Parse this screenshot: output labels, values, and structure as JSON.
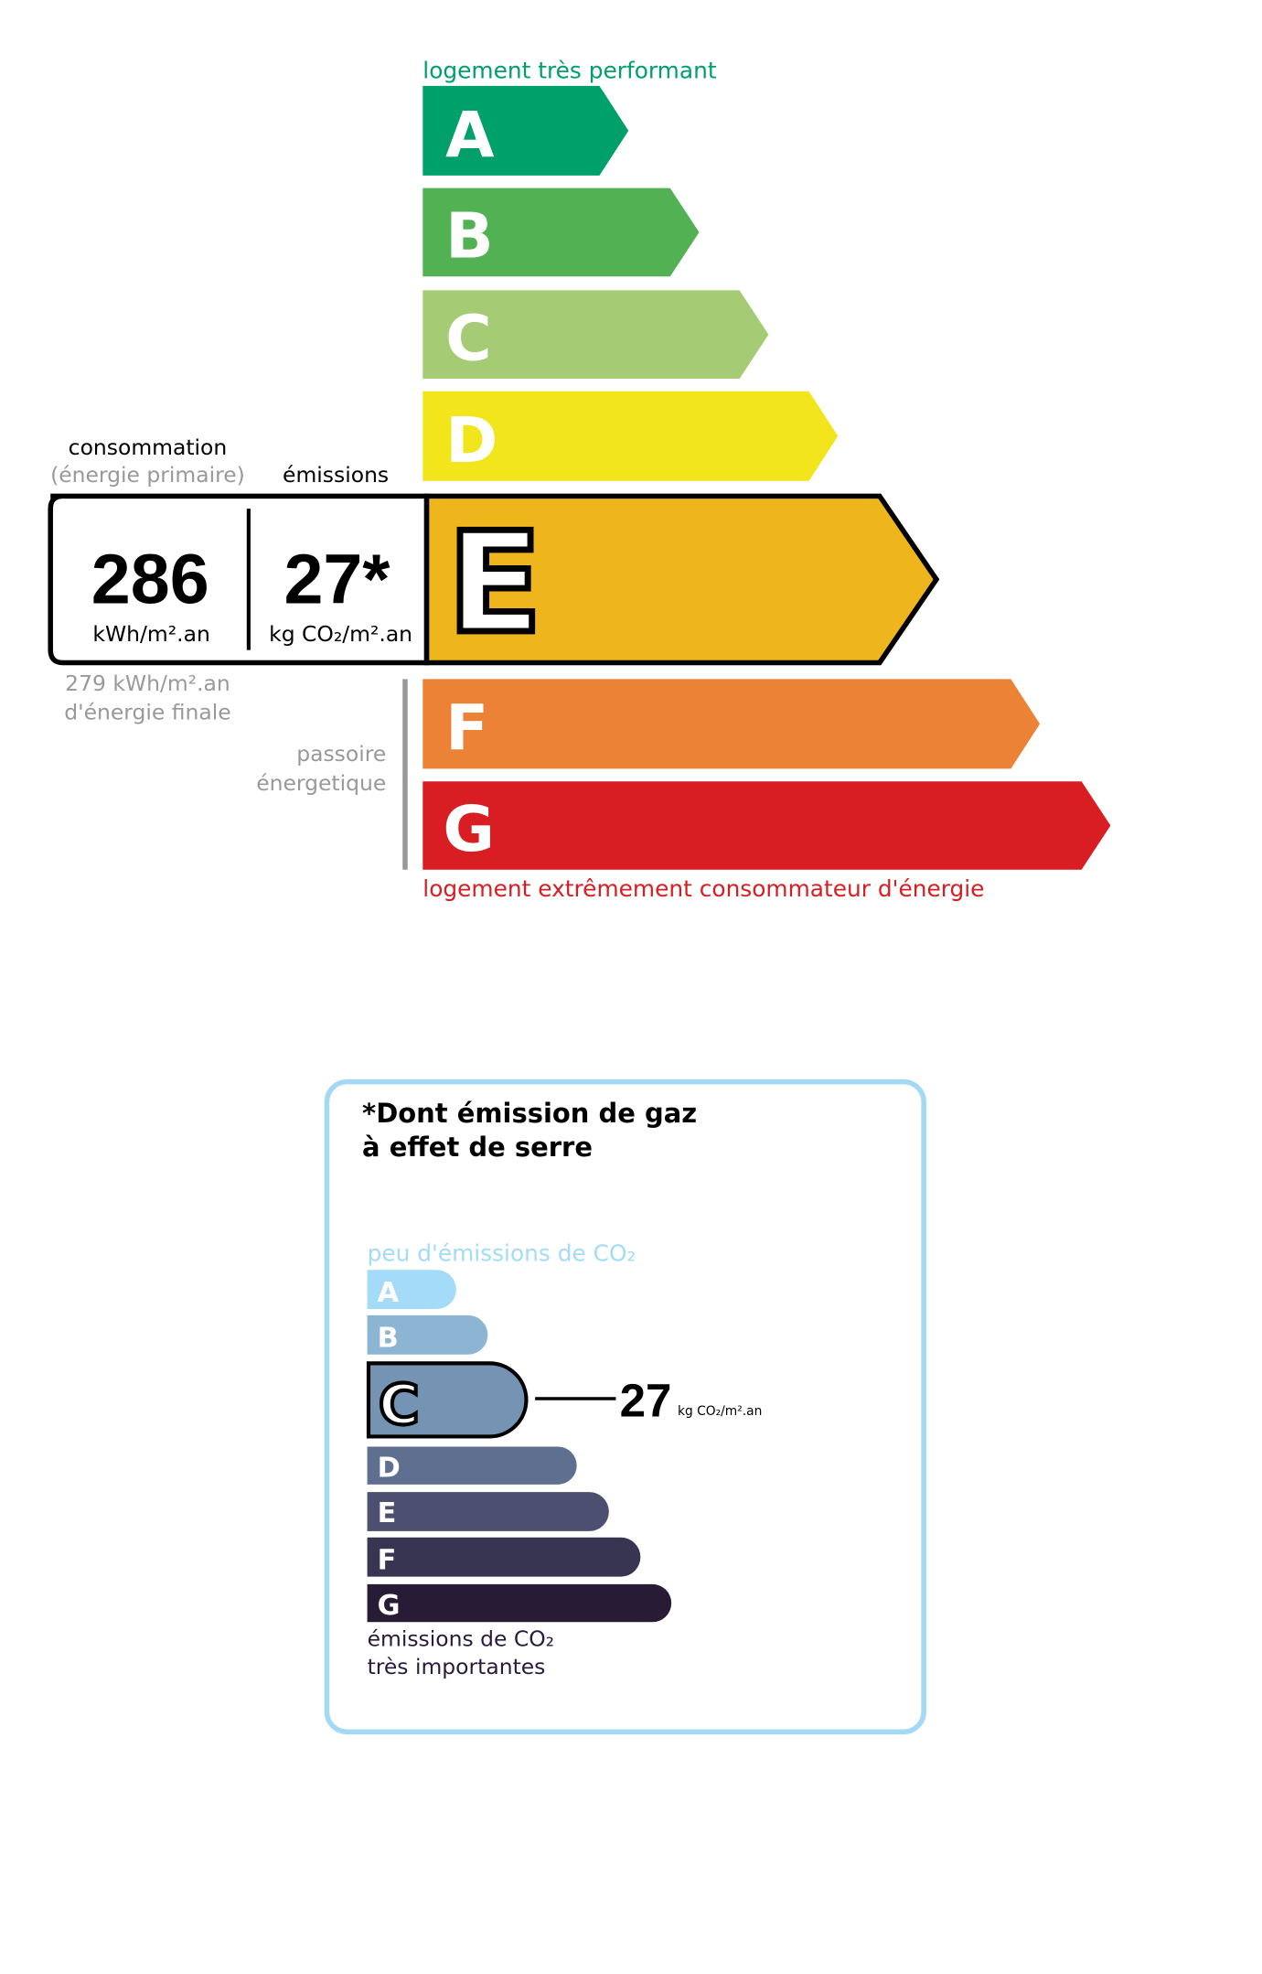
{
  "dpe": {
    "top_label": "logement très performant",
    "bottom_label": "logement extrêmement consommateur d'énergie",
    "classes": [
      {
        "letter": "A",
        "color": "#00a06a"
      },
      {
        "letter": "B",
        "color": "#52b153"
      },
      {
        "letter": "C",
        "color": "#a5cc74"
      },
      {
        "letter": "D",
        "color": "#f2e51c"
      },
      {
        "letter": "E",
        "color": "#efb51c"
      },
      {
        "letter": "F",
        "color": "#eb8235"
      },
      {
        "letter": "G",
        "color": "#d81e22"
      }
    ],
    "current_class": "E",
    "consumption_label": "consommation",
    "consumption_sublabel": "(énergie primaire)",
    "emissions_label": "émissions",
    "consumption_value": "286",
    "consumption_unit": "kWh/m².an",
    "emissions_value": "27*",
    "emissions_unit": "kg CO₂/m².an",
    "final_energy_value": "279 kWh/m².an",
    "final_energy_label": "d'énergie finale",
    "passoire_line1": "passoire",
    "passoire_line2": "énergetique"
  },
  "ges": {
    "title_line1": "*Dont émission de gaz",
    "title_line2": "à effet de serre",
    "top_label": "peu d'émissions de CO₂",
    "bottom_label_line1": "émissions de CO₂",
    "bottom_label_line2": "très importantes",
    "classes": [
      {
        "letter": "A",
        "color": "#a4dbf8"
      },
      {
        "letter": "B",
        "color": "#8cb4d3"
      },
      {
        "letter": "C",
        "color": "#7593b3"
      },
      {
        "letter": "D",
        "color": "#5f6f90"
      },
      {
        "letter": "E",
        "color": "#4c4f6f"
      },
      {
        "letter": "F",
        "color": "#373551"
      },
      {
        "letter": "G",
        "color": "#281b35"
      }
    ],
    "current_class": "C",
    "value": "27",
    "unit": "kg CO₂/m².an",
    "border_color": "#a3d9f5"
  }
}
